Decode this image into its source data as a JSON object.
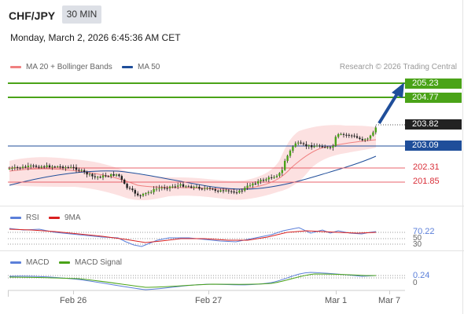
{
  "header": {
    "symbol": "CHF/JPY",
    "timeframe": "30 MIN",
    "datetime": "Monday, March 2, 2026 6:45:36 AM CET"
  },
  "legend": {
    "ma20_label": "MA 20 + Bollinger Bands",
    "ma50_label": "MA 50",
    "ma20_color": "#f08080",
    "ma50_color": "#1f4e9a",
    "copyright": "Research © 2026 Trading Central"
  },
  "price_levels": {
    "r2": "205.23",
    "r1": "204.77",
    "last": "203.82",
    "pivot": "203.09",
    "s1": "202.31",
    "s2": "201.85",
    "green": "#4aa318",
    "blue": "#1f4e9a",
    "red": "#e8636b",
    "dark": "#222222"
  },
  "rsi": {
    "label": "RSI",
    "ma_label": "9MA",
    "value": "70.22",
    "level_50": "50",
    "level_30": "30",
    "rsi_color": "#5b7fd9",
    "ma_color": "#d92020"
  },
  "macd": {
    "label": "MACD",
    "signal_label": "MACD Signal",
    "value": "0.24",
    "zero": "0",
    "macd_color": "#5b7fd9",
    "signal_color": "#4aa318"
  },
  "x_axis": {
    "labels": [
      "Feb 26",
      "Feb 27",
      "Mar 1",
      "Mar 7"
    ]
  }
}
